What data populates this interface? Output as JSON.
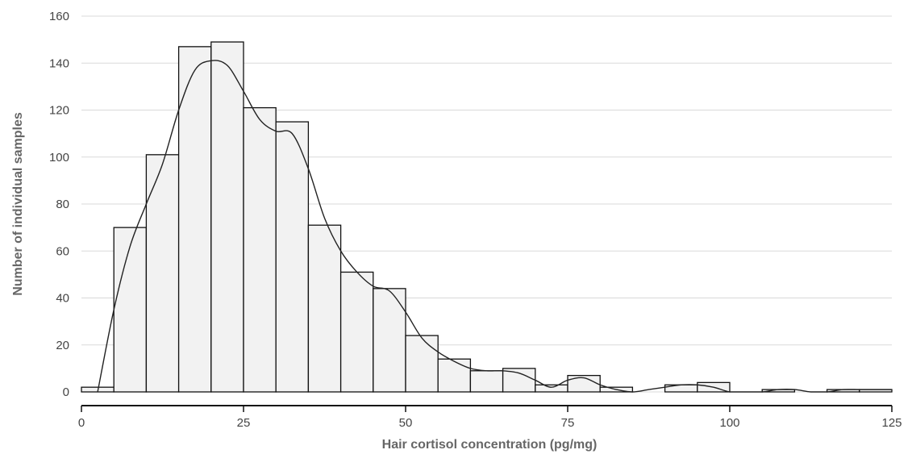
{
  "chart_data": {
    "type": "bar",
    "subtype": "histogram",
    "xlabel": "Hair cortisol concentration (pg/mg)",
    "ylabel": "Number of individual samples",
    "xlim": [
      0,
      125
    ],
    "ylim": [
      0,
      160
    ],
    "x_ticks": [
      0,
      25,
      50,
      75,
      100,
      125
    ],
    "y_ticks": [
      0,
      20,
      40,
      60,
      80,
      100,
      120,
      140,
      160
    ],
    "grid": true,
    "bin_width": 5,
    "bins": [
      {
        "x0": 0,
        "x1": 5,
        "count": 2
      },
      {
        "x0": 5,
        "x1": 10,
        "count": 70
      },
      {
        "x0": 10,
        "x1": 15,
        "count": 101
      },
      {
        "x0": 15,
        "x1": 20,
        "count": 147
      },
      {
        "x0": 20,
        "x1": 25,
        "count": 149
      },
      {
        "x0": 25,
        "x1": 30,
        "count": 121
      },
      {
        "x0": 30,
        "x1": 35,
        "count": 115
      },
      {
        "x0": 35,
        "x1": 40,
        "count": 71
      },
      {
        "x0": 40,
        "x1": 45,
        "count": 51
      },
      {
        "x0": 45,
        "x1": 50,
        "count": 44
      },
      {
        "x0": 50,
        "x1": 55,
        "count": 24
      },
      {
        "x0": 55,
        "x1": 60,
        "count": 14
      },
      {
        "x0": 60,
        "x1": 65,
        "count": 9
      },
      {
        "x0": 65,
        "x1": 70,
        "count": 10
      },
      {
        "x0": 70,
        "x1": 75,
        "count": 3
      },
      {
        "x0": 75,
        "x1": 80,
        "count": 7
      },
      {
        "x0": 80,
        "x1": 85,
        "count": 2
      },
      {
        "x0": 85,
        "x1": 90,
        "count": 0
      },
      {
        "x0": 90,
        "x1": 95,
        "count": 3
      },
      {
        "x0": 95,
        "x1": 100,
        "count": 4
      },
      {
        "x0": 100,
        "x1": 105,
        "count": 0
      },
      {
        "x0": 105,
        "x1": 110,
        "count": 1
      },
      {
        "x0": 110,
        "x1": 115,
        "count": 0
      },
      {
        "x0": 115,
        "x1": 120,
        "count": 1
      },
      {
        "x0": 120,
        "x1": 125,
        "count": 1
      }
    ],
    "density_curve": {
      "x": [
        2.5,
        5,
        7.5,
        10,
        12.5,
        15,
        17.5,
        20,
        22.5,
        25,
        27.5,
        30,
        32.5,
        35,
        37.5,
        40,
        42.5,
        45,
        47.5,
        50,
        52.5,
        55,
        57.5,
        60,
        62.5,
        65,
        67.5,
        70,
        72.5,
        75,
        77.5,
        80,
        82.5,
        85,
        87.5,
        90,
        92.5,
        95,
        97.5,
        100,
        102.5,
        105,
        107.5,
        110,
        112.5,
        115,
        117.5,
        120,
        122.5,
        125
      ],
      "y": [
        0,
        35,
        62,
        80,
        97,
        120,
        137,
        141,
        139,
        128,
        116,
        111,
        110,
        95,
        74,
        60,
        51,
        45,
        43,
        34,
        23,
        17,
        13,
        10,
        9,
        9,
        8,
        5,
        2,
        5,
        6,
        3,
        1,
        0,
        1,
        2,
        3,
        3,
        2,
        0,
        0,
        0,
        1,
        1,
        0,
        0,
        1,
        1,
        1,
        1
      ]
    },
    "colors": {
      "bar_fill": "#f2f2f2",
      "bar_stroke": "#111111",
      "curve": "#222222",
      "grid": "#d9d9d9",
      "axis_title": "#666666",
      "tick_label": "#444444"
    }
  }
}
